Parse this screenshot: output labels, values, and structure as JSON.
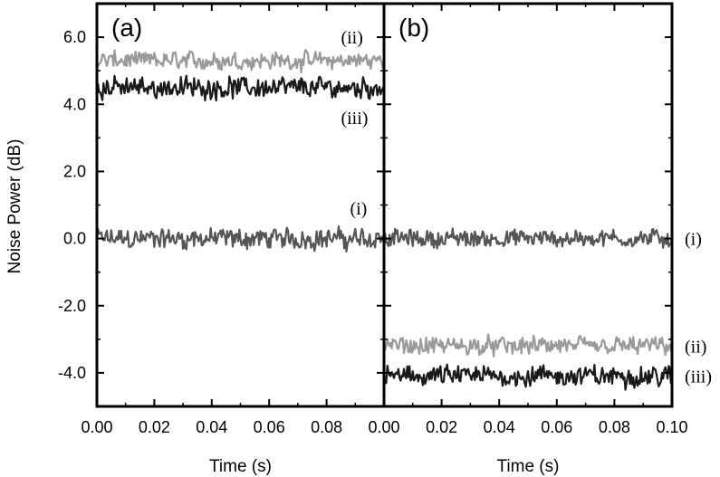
{
  "chart_data": [
    {
      "type": "line",
      "panel": "(a)",
      "xlabel": "Time (s)",
      "ylabel": "Noise Power (dB)",
      "xlim": [
        0.0,
        0.1
      ],
      "ylim": [
        -5.0,
        7.0
      ],
      "xticks": [
        "0.00",
        "0.02",
        "0.04",
        "0.06",
        "0.08"
      ],
      "yticks": [
        "6.0",
        "4.0",
        "2.0",
        "0.0",
        "-2.0",
        "-4.0"
      ],
      "series": [
        {
          "name": "(i)",
          "color": "#555555",
          "mean": 0.0,
          "noise": 0.35,
          "label_at": [
            0.085,
            0.9
          ]
        },
        {
          "name": "(ii)",
          "color": "#9a9a9a",
          "mean": 5.3,
          "noise": 0.3,
          "label_at": [
            0.085,
            6.0
          ]
        },
        {
          "name": "(iii)",
          "color": "#1a1a1a",
          "mean": 4.5,
          "noise": 0.35,
          "label_at": [
            0.085,
            3.6
          ]
        }
      ]
    },
    {
      "type": "line",
      "panel": "(b)",
      "xlabel": "Time (s)",
      "ylabel": "",
      "xlim": [
        0.0,
        0.1
      ],
      "ylim": [
        -5.0,
        7.0
      ],
      "xticks": [
        "0.00",
        "0.02",
        "0.04",
        "0.06",
        "0.08",
        "0.10"
      ],
      "yticks": [],
      "series": [
        {
          "name": "(i)",
          "color": "#555555",
          "mean": 0.0,
          "noise": 0.3,
          "label_at": "right"
        },
        {
          "name": "(ii)",
          "color": "#9a9a9a",
          "mean": -3.2,
          "noise": 0.3,
          "label_at": "right"
        },
        {
          "name": "(iii)",
          "color": "#1a1a1a",
          "mean": -4.1,
          "noise": 0.35,
          "label_at": "right"
        }
      ]
    }
  ]
}
